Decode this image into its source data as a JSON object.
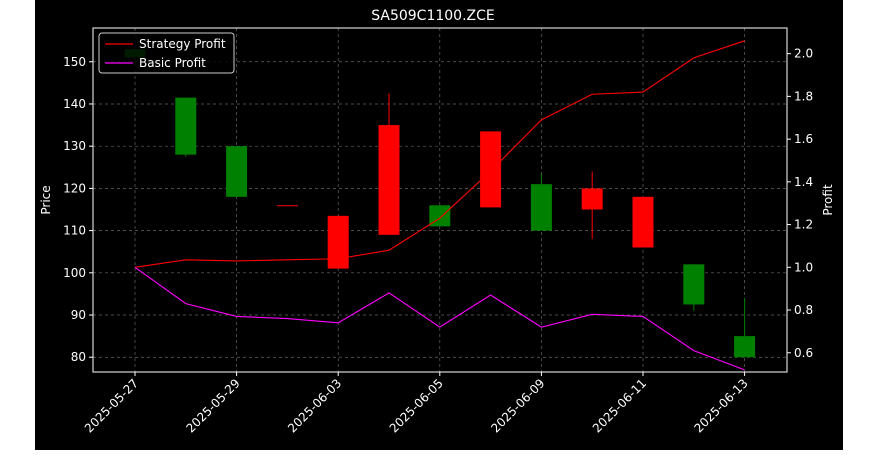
{
  "chart_data": {
    "type": "candlestick",
    "title": "SA509C1100.ZCE",
    "ylabel_left": "Price",
    "ylabel_right": "Profit",
    "ylim_left": [
      76.5,
      158
    ],
    "ylim_right": [
      0.51,
      2.12
    ],
    "yticks_left": [
      "80",
      "90",
      "100",
      "110",
      "120",
      "130",
      "140",
      "150"
    ],
    "yticks_right": [
      "0.6",
      "0.8",
      "1.0",
      "1.2",
      "1.4",
      "1.6",
      "1.8",
      "2.0"
    ],
    "x_tick_labels": [
      {
        "label": "2025-05-27",
        "index": 0
      },
      {
        "label": "2025-05-29",
        "index": 2
      },
      {
        "label": "2025-06-03",
        "index": 4
      },
      {
        "label": "2025-06-05",
        "index": 6
      },
      {
        "label": "2025-06-09",
        "index": 8
      },
      {
        "label": "2025-06-11",
        "index": 10
      },
      {
        "label": "2025-06-13",
        "index": 12
      }
    ],
    "grid": true,
    "legend_position": "upper-left",
    "up_color": "#ff0000",
    "down_color": "#008000",
    "candles": [
      {
        "open": 153,
        "close": 151,
        "high": 153,
        "low": 151
      },
      {
        "open": 141.5,
        "close": 128,
        "high": 141.5,
        "low": 127.5
      },
      {
        "open": 130,
        "close": 118,
        "high": 130,
        "low": 118
      },
      {
        "open": 116,
        "close": 116,
        "high": 116,
        "low": 116
      },
      {
        "open": 101,
        "close": 113.5,
        "high": 113.5,
        "low": 101
      },
      {
        "open": 109,
        "close": 135,
        "high": 142.5,
        "low": 109
      },
      {
        "open": 116,
        "close": 111,
        "high": 116,
        "low": 111
      },
      {
        "open": 115.5,
        "close": 133.5,
        "high": 133.5,
        "low": 115.5
      },
      {
        "open": 121,
        "close": 110,
        "high": 123.5,
        "low": 110
      },
      {
        "open": 115,
        "close": 120,
        "high": 124,
        "low": 108
      },
      {
        "open": 106,
        "close": 118,
        "high": 118,
        "low": 106
      },
      {
        "open": 102,
        "close": 92.5,
        "high": 102,
        "low": 91
      },
      {
        "open": 85,
        "close": 80,
        "high": 94,
        "low": 80
      }
    ],
    "series": [
      {
        "name": "Strategy Profit",
        "color": "#ff0000",
        "values": [
          1.0,
          1.035,
          1.03,
          1.035,
          1.04,
          1.08,
          1.23,
          1.45,
          1.69,
          1.81,
          1.82,
          1.98,
          2.06
        ]
      },
      {
        "name": "Basic Profit",
        "color": "#ff00ff",
        "values": [
          1.0,
          0.83,
          0.77,
          0.76,
          0.74,
          0.88,
          0.72,
          0.87,
          0.72,
          0.78,
          0.77,
          0.61,
          0.52
        ]
      }
    ]
  }
}
